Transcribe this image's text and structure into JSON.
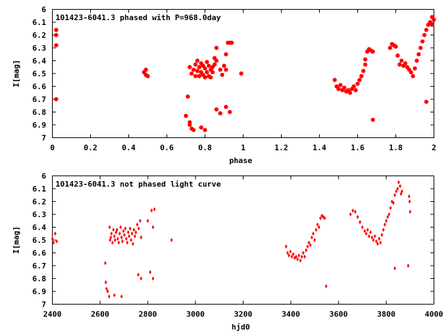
{
  "chart_data": [
    {
      "type": "scatter",
      "title": "101423-6041.3 phased with P=968.0day",
      "xlabel": "phase",
      "ylabel": "I[mag]",
      "xlim": [
        0,
        2
      ],
      "ylim": [
        7,
        6
      ],
      "y_inverted": true,
      "xticks": [
        "0",
        "0.2",
        "0.4",
        "0.6",
        "0.8",
        "1",
        "1.2",
        "1.4",
        "1.6",
        "1.8",
        "2"
      ],
      "yticks": [
        "6",
        "6.1",
        "6.2",
        "6.3",
        "6.4",
        "6.5",
        "6.6",
        "6.7",
        "6.8",
        "6.9",
        "7"
      ],
      "grid": false,
      "marker_color": "#ff0000",
      "marker": "filled-circle",
      "series": [
        {
          "points": [
            [
              0.02,
              6.16
            ],
            [
              0.02,
              6.2
            ],
            [
              0.02,
              6.28
            ],
            [
              0.02,
              6.7
            ],
            [
              0.48,
              6.49
            ],
            [
              0.49,
              6.47
            ],
            [
              0.49,
              6.51
            ],
            [
              0.5,
              6.52
            ],
            [
              0.7,
              6.83
            ],
            [
              0.71,
              6.68
            ],
            [
              0.72,
              6.88
            ],
            [
              0.72,
              6.9
            ],
            [
              0.73,
              6.93
            ],
            [
              0.74,
              6.94
            ],
            [
              0.72,
              6.45
            ],
            [
              0.73,
              6.5
            ],
            [
              0.74,
              6.47
            ],
            [
              0.75,
              6.43
            ],
            [
              0.75,
              6.52
            ],
            [
              0.76,
              6.4
            ],
            [
              0.76,
              6.48
            ],
            [
              0.77,
              6.45
            ],
            [
              0.77,
              6.52
            ],
            [
              0.78,
              6.42
            ],
            [
              0.78,
              6.49
            ],
            [
              0.79,
              6.44
            ],
            [
              0.79,
              6.51
            ],
            [
              0.8,
              6.46
            ],
            [
              0.8,
              6.53
            ],
            [
              0.81,
              6.41
            ],
            [
              0.81,
              6.49
            ],
            [
              0.82,
              6.44
            ],
            [
              0.82,
              6.52
            ],
            [
              0.83,
              6.47
            ],
            [
              0.83,
              6.53
            ],
            [
              0.84,
              6.45
            ],
            [
              0.84,
              6.49
            ],
            [
              0.85,
              6.38
            ],
            [
              0.85,
              6.43
            ],
            [
              0.86,
              6.4
            ],
            [
              0.86,
              6.3
            ],
            [
              0.88,
              6.47
            ],
            [
              0.89,
              6.51
            ],
            [
              0.9,
              6.44
            ],
            [
              0.91,
              6.47
            ],
            [
              0.91,
              6.35
            ],
            [
              0.92,
              6.26
            ],
            [
              0.93,
              6.26
            ],
            [
              0.94,
              6.26
            ],
            [
              0.78,
              6.92
            ],
            [
              0.8,
              6.94
            ],
            [
              0.86,
              6.78
            ],
            [
              0.88,
              6.81
            ],
            [
              0.91,
              6.76
            ],
            [
              0.93,
              6.8
            ],
            [
              0.99,
              6.5
            ],
            [
              1.48,
              6.55
            ],
            [
              1.49,
              6.6
            ],
            [
              1.5,
              6.62
            ],
            [
              1.51,
              6.59
            ],
            [
              1.52,
              6.63
            ],
            [
              1.53,
              6.61
            ],
            [
              1.54,
              6.64
            ],
            [
              1.55,
              6.63
            ],
            [
              1.56,
              6.65
            ],
            [
              1.57,
              6.62
            ],
            [
              1.58,
              6.6
            ],
            [
              1.59,
              6.63
            ],
            [
              1.6,
              6.58
            ],
            [
              1.61,
              6.55
            ],
            [
              1.62,
              6.52
            ],
            [
              1.63,
              6.48
            ],
            [
              1.64,
              6.43
            ],
            [
              1.64,
              6.39
            ],
            [
              1.65,
              6.33
            ],
            [
              1.66,
              6.31
            ],
            [
              1.67,
              6.32
            ],
            [
              1.68,
              6.33
            ],
            [
              1.68,
              6.86
            ],
            [
              1.77,
              6.3
            ],
            [
              1.78,
              6.27
            ],
            [
              1.79,
              6.28
            ],
            [
              1.8,
              6.29
            ],
            [
              1.81,
              6.36
            ],
            [
              1.82,
              6.43
            ],
            [
              1.83,
              6.4
            ],
            [
              1.84,
              6.44
            ],
            [
              1.85,
              6.42
            ],
            [
              1.86,
              6.45
            ],
            [
              1.87,
              6.47
            ],
            [
              1.88,
              6.49
            ],
            [
              1.89,
              6.52
            ],
            [
              1.9,
              6.46
            ],
            [
              1.91,
              6.4
            ],
            [
              1.92,
              6.35
            ],
            [
              1.93,
              6.3
            ],
            [
              1.94,
              6.25
            ],
            [
              1.95,
              6.2
            ],
            [
              1.96,
              6.16
            ],
            [
              1.97,
              6.12
            ],
            [
              1.98,
              6.1
            ],
            [
              1.99,
              6.12
            ],
            [
              2.0,
              6.08
            ],
            [
              1.99,
              6.06
            ],
            [
              1.96,
              6.72
            ]
          ]
        }
      ]
    },
    {
      "type": "scatter",
      "title": "101423-6041.3 not phased light curve",
      "xlabel": "hjd0",
      "ylabel": "I[mag]",
      "xlim": [
        2400,
        4000
      ],
      "ylim": [
        7,
        6
      ],
      "y_inverted": true,
      "xticks": [
        "2400",
        "2600",
        "2800",
        "3000",
        "3200",
        "3400",
        "3600",
        "3800",
        "4000"
      ],
      "yticks": [
        "6",
        "6.1",
        "6.2",
        "6.3",
        "6.4",
        "6.5",
        "6.6",
        "6.7",
        "6.8",
        "6.9",
        "7"
      ],
      "grid": false,
      "marker_color": "#ff0000",
      "marker": "diamond",
      "series": [
        {
          "points": [
            [
              2400,
              6.49
            ],
            [
              2405,
              6.52
            ],
            [
              2412,
              6.45
            ],
            [
              2418,
              6.51
            ],
            [
              2622,
              6.68
            ],
            [
              2624,
              6.83
            ],
            [
              2627,
              6.88
            ],
            [
              2632,
              6.9
            ],
            [
              2638,
              6.94
            ],
            [
              2640,
              6.4
            ],
            [
              2642,
              6.5
            ],
            [
              2645,
              6.48
            ],
            [
              2648,
              6.45
            ],
            [
              2652,
              6.52
            ],
            [
              2656,
              6.42
            ],
            [
              2660,
              6.47
            ],
            [
              2663,
              6.5
            ],
            [
              2667,
              6.44
            ],
            [
              2671,
              6.42
            ],
            [
              2674,
              6.49
            ],
            [
              2678,
              6.52
            ],
            [
              2682,
              6.45
            ],
            [
              2686,
              6.4
            ],
            [
              2690,
              6.48
            ],
            [
              2694,
              6.51
            ],
            [
              2698,
              6.43
            ],
            [
              2702,
              6.46
            ],
            [
              2706,
              6.41
            ],
            [
              2710,
              6.49
            ],
            [
              2714,
              6.52
            ],
            [
              2718,
              6.44
            ],
            [
              2722,
              6.47
            ],
            [
              2726,
              6.41
            ],
            [
              2730,
              6.5
            ],
            [
              2734,
              6.45
            ],
            [
              2738,
              6.53
            ],
            [
              2742,
              6.42
            ],
            [
              2746,
              6.47
            ],
            [
              2750,
              6.44
            ],
            [
              2756,
              6.38
            ],
            [
              2762,
              6.41
            ],
            [
              2768,
              6.35
            ],
            [
              2772,
              6.48
            ],
            [
              2660,
              6.93
            ],
            [
              2690,
              6.94
            ],
            [
              2760,
              6.77
            ],
            [
              2772,
              6.8
            ],
            [
              2810,
              6.75
            ],
            [
              2822,
              6.8
            ],
            [
              2800,
              6.35
            ],
            [
              2816,
              6.27
            ],
            [
              2828,
              6.26
            ],
            [
              2822,
              6.4
            ],
            [
              2900,
              6.5
            ],
            [
              3380,
              6.55
            ],
            [
              3386,
              6.6
            ],
            [
              3392,
              6.62
            ],
            [
              3398,
              6.59
            ],
            [
              3404,
              6.63
            ],
            [
              3410,
              6.61
            ],
            [
              3416,
              6.64
            ],
            [
              3422,
              6.63
            ],
            [
              3428,
              6.65
            ],
            [
              3434,
              6.62
            ],
            [
              3440,
              6.66
            ],
            [
              3446,
              6.63
            ],
            [
              3452,
              6.6
            ],
            [
              3458,
              6.63
            ],
            [
              3464,
              6.58
            ],
            [
              3470,
              6.55
            ],
            [
              3476,
              6.52
            ],
            [
              3482,
              6.54
            ],
            [
              3488,
              6.48
            ],
            [
              3494,
              6.45
            ],
            [
              3500,
              6.5
            ],
            [
              3506,
              6.42
            ],
            [
              3512,
              6.38
            ],
            [
              3518,
              6.4
            ],
            [
              3524,
              6.33
            ],
            [
              3530,
              6.31
            ],
            [
              3536,
              6.32
            ],
            [
              3542,
              6.33
            ],
            [
              3548,
              6.86
            ],
            [
              3650,
              6.3
            ],
            [
              3660,
              6.27
            ],
            [
              3670,
              6.28
            ],
            [
              3680,
              6.32
            ],
            [
              3690,
              6.36
            ],
            [
              3700,
              6.4
            ],
            [
              3710,
              6.43
            ],
            [
              3716,
              6.45
            ],
            [
              3722,
              6.42
            ],
            [
              3728,
              6.47
            ],
            [
              3734,
              6.44
            ],
            [
              3740,
              6.48
            ],
            [
              3746,
              6.5
            ],
            [
              3752,
              6.47
            ],
            [
              3758,
              6.51
            ],
            [
              3764,
              6.53
            ],
            [
              3770,
              6.49
            ],
            [
              3776,
              6.52
            ],
            [
              3782,
              6.46
            ],
            [
              3788,
              6.42
            ],
            [
              3794,
              6.38
            ],
            [
              3800,
              6.35
            ],
            [
              3806,
              6.32
            ],
            [
              3812,
              6.3
            ],
            [
              3818,
              6.25
            ],
            [
              3824,
              6.2
            ],
            [
              3830,
              6.21
            ],
            [
              3836,
              6.15
            ],
            [
              3842,
              6.12
            ],
            [
              3848,
              6.1
            ],
            [
              3852,
              6.05
            ],
            [
              3858,
              6.08
            ],
            [
              3862,
              6.14
            ],
            [
              3866,
              6.12
            ],
            [
              3896,
              6.16
            ],
            [
              3898,
              6.2
            ],
            [
              3900,
              6.28
            ],
            [
              3836,
              6.72
            ],
            [
              3892,
              6.7
            ]
          ]
        }
      ]
    }
  ]
}
